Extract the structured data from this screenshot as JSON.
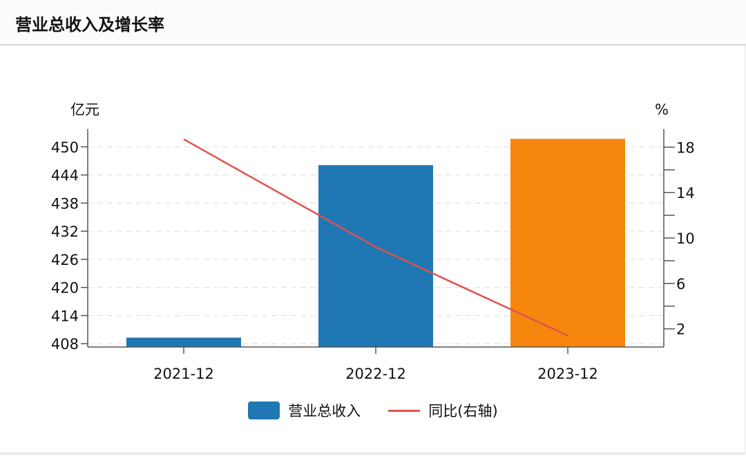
{
  "title": "营业总收入及增长率",
  "chart_data": {
    "type": "bar",
    "title": "营业总收入及增长率",
    "categories": [
      "2021-12",
      "2022-12",
      "2023-12"
    ],
    "series": [
      {
        "name": "营业总收入",
        "type": "bar",
        "axis": "left",
        "values": [
          409.3,
          446.1,
          451.7
        ],
        "colors": [
          "#1f77b4",
          "#1f77b4",
          "#f7860f"
        ]
      },
      {
        "name": "同比(右轴)",
        "type": "line",
        "axis": "right",
        "values": [
          18.7,
          9.2,
          1.4
        ],
        "color": "#e0524a"
      }
    ],
    "ylabel": "亿元",
    "y2label": "%",
    "ylim": [
      407.3,
      453.8
    ],
    "y2lim": [
      0.4,
      19.6
    ],
    "yticks": [
      408,
      414,
      420,
      426,
      432,
      438,
      444,
      450
    ],
    "y2ticks": [
      2,
      6,
      10,
      14,
      18
    ],
    "y2minor": [
      4,
      8,
      12,
      16
    ],
    "grid": true,
    "legend": "bottom-center"
  }
}
